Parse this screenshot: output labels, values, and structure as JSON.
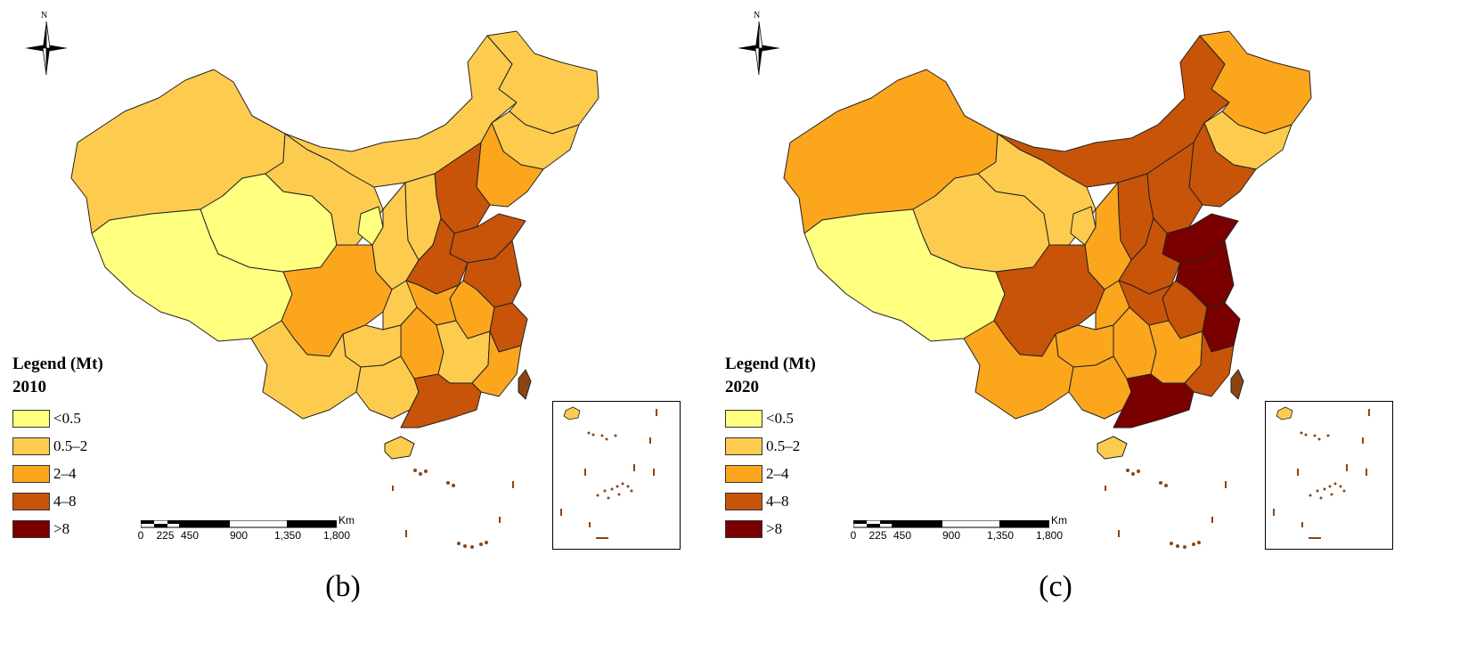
{
  "maps": [
    {
      "caption": "(b)",
      "legend_title": "Legend (Mt)",
      "year": "2010",
      "region_classes": {
        "xinjiang": "0.5–2",
        "tibet": "<0.5",
        "qinghai": "<0.5",
        "gansu": "0.5–2",
        "inner_mongolia": "0.5–2",
        "heilongjiang": "0.5–2",
        "jilin": "0.5–2",
        "liaoning": "2–4",
        "ningxia": "<0.5",
        "shaanxi": "0.5–2",
        "shanxi": "0.5–2",
        "hebei": "4–8",
        "shandong": "4–8",
        "henan": "4–8",
        "jiangsu": "4–8",
        "anhui": "2–4",
        "sichuan": "2–4",
        "chongqing": "0.5–2",
        "hubei": "2–4",
        "hunan": "2–4",
        "jiangxi": "0.5–2",
        "zhejiang": "4–8",
        "fujian": "2–4",
        "guangdong": "4–8",
        "guangxi": "0.5–2",
        "guizhou": "0.5–2",
        "yunnan": "0.5–2",
        "hainan": "0.5–2",
        "taiwan": "n/a"
      }
    },
    {
      "caption": "(c)",
      "legend_title": "Legend (Mt)",
      "year": "2020",
      "region_classes": {
        "xinjiang": "2–4",
        "tibet": "<0.5",
        "qinghai": "0.5–2",
        "gansu": "0.5–2",
        "inner_mongolia": "4–8",
        "heilongjiang": "2–4",
        "jilin": "0.5–2",
        "liaoning": "4–8",
        "ningxia": "0.5–2",
        "shaanxi": "2–4",
        "shanxi": "4–8",
        "hebei": "4–8",
        "shandong": ">8",
        "henan": "4–8",
        "jiangsu": ">8",
        "anhui": "4–8",
        "sichuan": "4–8",
        "chongqing": "2–4",
        "hubei": "4–8",
        "hunan": "2–4",
        "jiangxi": "2–4",
        "zhejiang": ">8",
        "fujian": "4–8",
        "guangdong": ">8",
        "guangxi": "2–4",
        "guizhou": "2–4",
        "yunnan": "2–4",
        "hainan": "0.5–2",
        "taiwan": "n/a"
      }
    }
  ],
  "legend_classes": [
    {
      "label": "<0.5",
      "color": "#ffff80"
    },
    {
      "label": "0.5–2",
      "color": "#fdcc4f"
    },
    {
      "label": "2–4",
      "color": "#fca61e"
    },
    {
      "label": "4–8",
      "color": "#c75409"
    },
    {
      "label": ">8",
      "color": "#7a0000"
    }
  ],
  "no_data_color": "#8b4513",
  "north_label": "N",
  "scalebar": {
    "ticks": [
      "0",
      "225",
      "450",
      "900",
      "1,350",
      "1,800"
    ],
    "tick_values": [
      0,
      225,
      450,
      900,
      1350,
      1800
    ],
    "unit": "Km"
  },
  "icons": {
    "north_arrow": "compass-rose-icon"
  }
}
